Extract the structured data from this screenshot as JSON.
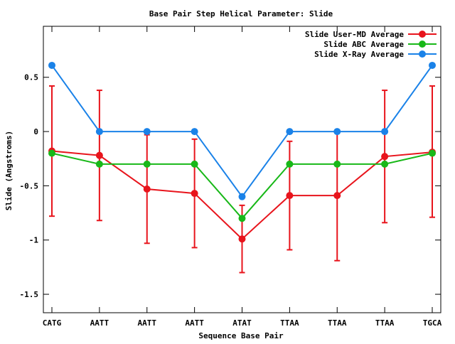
{
  "chart_data": {
    "type": "line",
    "title": "Base Pair Step Helical Parameter: Slide",
    "xlabel": "Sequence Base Pair",
    "ylabel": "Slide (Angstroms)",
    "categories": [
      "CATG",
      "AATT",
      "AATT",
      "AATT",
      "ATAT",
      "TTAA",
      "TTAA",
      "TTAA",
      "TGCA"
    ],
    "ylim": [
      -1.67,
      0.97
    ],
    "yticks": [
      {
        "value": 0.5,
        "label": "0.5"
      },
      {
        "value": 0,
        "label": "0"
      },
      {
        "value": -0.5,
        "label": "-0.5"
      },
      {
        "value": -1,
        "label": "-1"
      },
      {
        "value": -1.5,
        "label": "-1.5"
      }
    ],
    "legend_position": "top-right",
    "grid": false,
    "series": [
      {
        "name": "Slide User-MD Average",
        "color": "#e8141c",
        "values": [
          -0.18,
          -0.22,
          -0.53,
          -0.57,
          -0.99,
          -0.59,
          -0.59,
          -0.23,
          -0.19
        ],
        "error_low": [
          -0.78,
          -0.82,
          -1.03,
          -1.07,
          -1.3,
          -1.09,
          -1.19,
          -0.84,
          -0.79
        ],
        "error_high": [
          0.42,
          0.38,
          -0.03,
          -0.07,
          -0.68,
          -0.09,
          0.01,
          0.38,
          0.42
        ]
      },
      {
        "name": "Slide ABC Average",
        "color": "#18b818",
        "values": [
          -0.2,
          -0.3,
          -0.3,
          -0.3,
          -0.8,
          -0.3,
          -0.3,
          -0.3,
          -0.2
        ]
      },
      {
        "name": "Slide X-Ray Average",
        "color": "#1a82e8",
        "values": [
          0.61,
          0.0,
          0.0,
          0.0,
          -0.6,
          0.0,
          0.0,
          0.0,
          0.61
        ]
      }
    ]
  }
}
